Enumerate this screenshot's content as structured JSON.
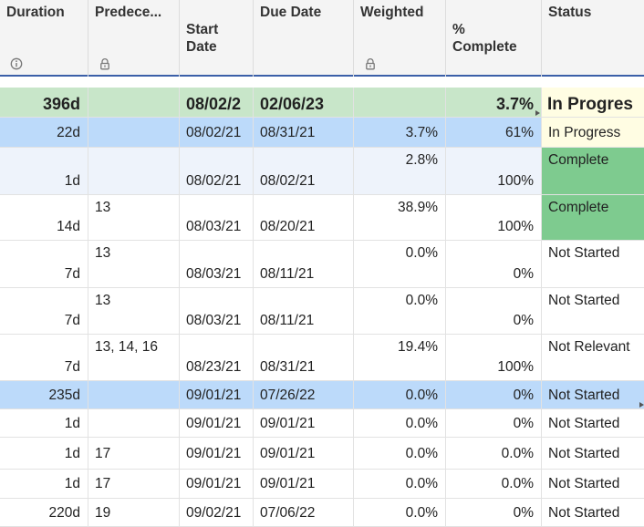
{
  "columns": [
    {
      "label": "Duration",
      "icon": "info-icon"
    },
    {
      "label": "Predece...",
      "icon": "lock-icon"
    },
    {
      "label": "Start\nDate"
    },
    {
      "label": "Due Date"
    },
    {
      "label": "Weighted",
      "icon": "lock-icon"
    },
    {
      "label": "%\nComplete"
    },
    {
      "label": "Status"
    }
  ],
  "colors": {
    "summary_green": "#c8e6c9",
    "in_progress_yellow": "#fffde3",
    "complete_green": "#7ecb8f",
    "blue_row": "#bcdafa",
    "light_blue_row": "#eef3fb",
    "header_line": "#3b5fa8"
  },
  "rows": [
    {
      "duration": "396d",
      "pred": "",
      "start": "08/02/2",
      "due": "02/06/23",
      "weighted": "",
      "pct": "3.7%",
      "status": "In Progres"
    },
    {
      "duration": "22d",
      "pred": "",
      "start": "08/02/21",
      "due": "08/31/21",
      "weighted": "3.7%",
      "pct": "61%",
      "status": "In Progress"
    },
    {
      "duration": "1d",
      "pred": "",
      "start": "08/02/21",
      "due": "08/02/21",
      "weighted": "2.8%",
      "pct": "100%",
      "status": "Complete"
    },
    {
      "duration": "14d",
      "pred": "13",
      "start": "08/03/21",
      "due": "08/20/21",
      "weighted": "38.9%",
      "pct": "100%",
      "status": "Complete"
    },
    {
      "duration": "7d",
      "pred": "13",
      "start": "08/03/21",
      "due": "08/11/21",
      "weighted": "0.0%",
      "pct": "0%",
      "status": "Not Started"
    },
    {
      "duration": "7d",
      "pred": "13",
      "start": "08/03/21",
      "due": "08/11/21",
      "weighted": "0.0%",
      "pct": "0%",
      "status": "Not Started"
    },
    {
      "duration": "7d",
      "pred": "13, 14, 16",
      "start": "08/23/21",
      "due": "08/31/21",
      "weighted": "19.4%",
      "pct": "100%",
      "status": "Not Relevant"
    },
    {
      "duration": "235d",
      "pred": "",
      "start": "09/01/21",
      "due": "07/26/22",
      "weighted": "0.0%",
      "pct": "0%",
      "status": "Not Started"
    },
    {
      "duration": "1d",
      "pred": "",
      "start": "09/01/21",
      "due": "09/01/21",
      "weighted": "0.0%",
      "pct": "0%",
      "status": "Not Started"
    },
    {
      "duration": "1d",
      "pred": "17",
      "start": "09/01/21",
      "due": "09/01/21",
      "weighted": "0.0%",
      "pct": "0.0%",
      "status": "Not Started"
    },
    {
      "duration": "1d",
      "pred": "17",
      "start": "09/01/21",
      "due": "09/01/21",
      "weighted": "0.0%",
      "pct": "0.0%",
      "status": "Not Started"
    },
    {
      "duration": "220d",
      "pred": "19",
      "start": "09/02/21",
      "due": "07/06/22",
      "weighted": "0.0%",
      "pct": "0%",
      "status": "Not Started"
    }
  ]
}
